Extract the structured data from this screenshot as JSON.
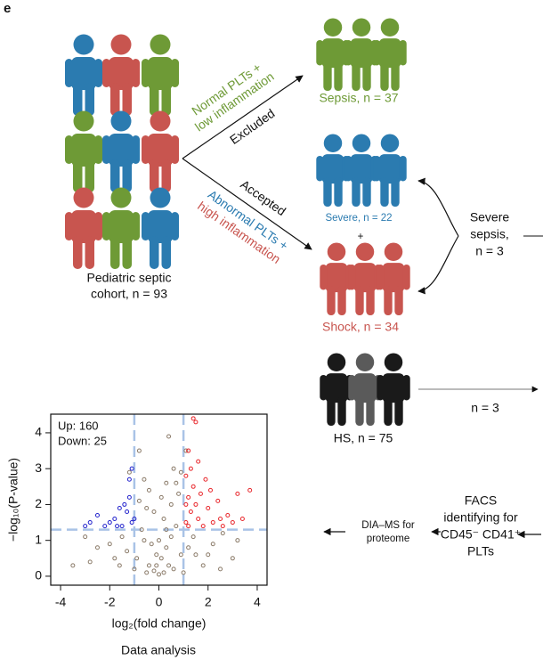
{
  "panel_label": "e",
  "cohort": {
    "line1": "Pediatric septic",
    "line2": "cohort, n = 93"
  },
  "branches": {
    "excluded_criteria": {
      "line1": "Normal PLTs +",
      "line2": "low inflammation"
    },
    "excluded": "Excluded",
    "accepted": "Accepted",
    "accepted_criteria": {
      "line1": "Abnormal PLTs +",
      "line2": "high inflammation"
    }
  },
  "groups": {
    "sepsis": "Sepsis, n = 37",
    "severe": "Severe, n = 22",
    "plus": "+",
    "shock": "Shock, n = 34",
    "hs": "HS, n = 75"
  },
  "severe_sepsis": {
    "line1": "Severe",
    "line2": "sepsis,",
    "line3": "n = 3"
  },
  "hs_selected": "n = 3",
  "facs": {
    "line1": "FACS",
    "line2": "identifying for",
    "line3": "CD45⁻ CD41⁺",
    "line4": "PLTs"
  },
  "dia_ms": {
    "line1": "DIA–MS for",
    "line2": "proteome"
  },
  "data_analysis": "Data analysis",
  "chart_data": {
    "type": "scatter",
    "xlabel": "log₂(fold change)",
    "ylabel": "−log₁₀(P-value)",
    "xlim": [
      -4.4,
      4.4
    ],
    "ylim": [
      -0.25,
      4.52
    ],
    "xticks": [
      -4,
      -2,
      0,
      2,
      4
    ],
    "yticks": [
      0,
      1,
      2,
      3,
      4
    ],
    "thresholds": {
      "x": [
        -1,
        1
      ],
      "y": 1.3,
      "color": "#a9c3e6"
    },
    "annotations": [
      {
        "text": "Up: 160",
        "color": "#e8262b"
      },
      {
        "text": "Down: 25",
        "color": "#2222cc"
      }
    ],
    "series": [
      {
        "color": "#8a7a68",
        "x": [
          0,
          0.2,
          -0.2,
          0.4,
          -0.4,
          0.1,
          -0.1,
          0.3,
          -0.3,
          0.5,
          -0.6,
          0.7,
          -0.7,
          0.2,
          -0.2,
          0.5,
          -0.5,
          0.8,
          -0.8,
          0.3,
          0.9,
          -0.4,
          0.6,
          1.2,
          1.5,
          -1.3,
          -1.8,
          2.2,
          -2.5,
          -3.5,
          3.0,
          1.8,
          -1.0,
          0.9,
          -0.9,
          1.4,
          -1.5,
          2.0,
          -2.0,
          0.0,
          0.1,
          -0.6,
          0.7,
          1.1,
          -1.2,
          0.4,
          -0.8,
          3.2,
          -3.0,
          2.6,
          0.3,
          -0.1,
          0.6,
          -0.5,
          1.0,
          -1.6,
          2.5,
          -2.8
        ],
        "values": [
          0.05,
          0.1,
          0.15,
          0.3,
          0.3,
          0.5,
          0.6,
          0.8,
          0.9,
          1.1,
          1.0,
          1.4,
          1.3,
          1.6,
          1.8,
          2.0,
          1.9,
          2.3,
          2.1,
          2.6,
          2.9,
          2.4,
          3.0,
          0.8,
          0.6,
          0.7,
          0.5,
          0.9,
          0.8,
          0.3,
          0.5,
          0.3,
          0.2,
          0.6,
          0.5,
          1.1,
          1.1,
          0.6,
          0.9,
          1.0,
          2.2,
          2.7,
          2.6,
          3.5,
          2.9,
          3.9,
          3.5,
          1.0,
          1.1,
          1.2,
          1.3,
          0.3,
          0.2,
          0.1,
          0.1,
          0.3,
          0.2,
          0.4
        ]
      },
      {
        "color": "#e8262b",
        "x": [
          1.1,
          1.3,
          1.5,
          1.2,
          1.6,
          1.8,
          2.0,
          1.4,
          1.1,
          1.7,
          2.2,
          2.5,
          2.8,
          3.0,
          2.4,
          1.9,
          1.3,
          1.2,
          1.5,
          1.4,
          3.7,
          3.2,
          2.1,
          1.6,
          1.2,
          2.6,
          3.4,
          1.1
        ],
        "values": [
          1.5,
          1.8,
          2.0,
          2.2,
          1.6,
          1.4,
          1.9,
          2.5,
          2.8,
          2.3,
          1.5,
          1.6,
          1.7,
          1.5,
          2.1,
          2.7,
          3.0,
          3.5,
          4.3,
          4.4,
          2.4,
          2.3,
          2.4,
          3.2,
          1.4,
          1.4,
          1.6,
          2.0
        ]
      },
      {
        "color": "#2222cc",
        "x": [
          -1.1,
          -1.3,
          -1.5,
          -1.8,
          -2.0,
          -2.5,
          -2.8,
          -3.0,
          -1.2,
          -1.4,
          -1.1,
          -1.2,
          -1.6,
          -2.2,
          -1.0,
          -1.7
        ],
        "values": [
          1.5,
          1.8,
          1.4,
          1.6,
          1.5,
          1.7,
          1.5,
          1.4,
          2.2,
          2.0,
          3.0,
          2.7,
          1.9,
          1.4,
          1.6,
          1.4
        ]
      }
    ]
  }
}
